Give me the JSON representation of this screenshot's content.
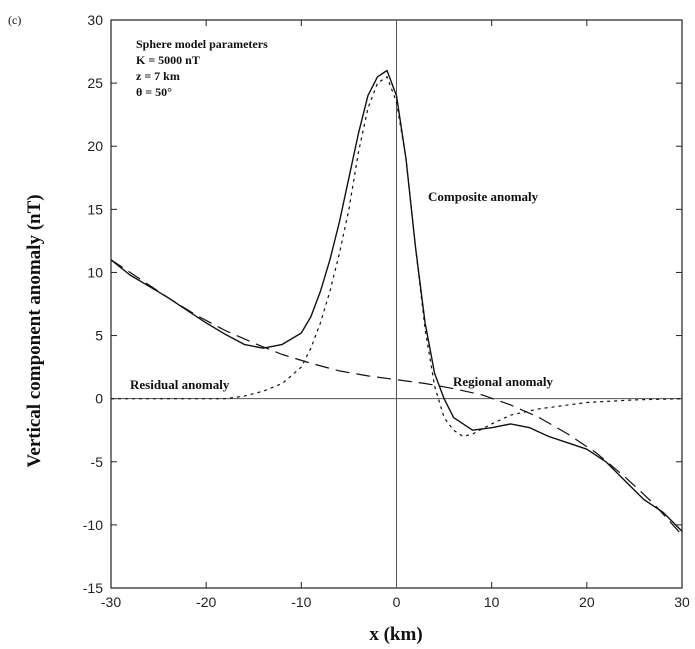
{
  "panel_label": "(c)",
  "chart_data": {
    "type": "line",
    "xlabel": "x (km)",
    "ylabel": "Vertical component anomaly (nT)",
    "xlim": [
      -30,
      30
    ],
    "ylim": [
      -15,
      30
    ],
    "x_ticks": [
      -30,
      -20,
      -10,
      0,
      10,
      20,
      30
    ],
    "y_ticks": [
      -15,
      -10,
      -5,
      0,
      5,
      10,
      15,
      20,
      25,
      30
    ],
    "x_tick_labels": [
      "-30",
      "-20",
      "-10",
      "0",
      "10",
      "20",
      "30"
    ],
    "y_tick_labels": [
      "-15",
      "-10",
      "-5",
      "0",
      "5",
      "10",
      "15",
      "20",
      "25",
      "30"
    ],
    "grid": false,
    "reference_lines": {
      "x": 0,
      "y": 0
    },
    "parameters": {
      "heading": "Sphere model parameters",
      "lines": [
        "K = 5000 nT",
        "z = 7 km",
        "θ = 50°"
      ]
    },
    "annotations": [
      "Composite anomaly",
      "Residual anomaly",
      "Regional anomaly"
    ],
    "series": [
      {
        "style": "solid",
        "x": [
          -30,
          -28,
          -26,
          -24,
          -22,
          -20,
          -18,
          -16,
          -14,
          -12,
          -10,
          -9,
          -8,
          -7,
          -6,
          -5,
          -4,
          -3,
          -2,
          -1,
          0,
          1,
          2,
          3,
          4,
          5,
          6,
          8,
          10,
          12,
          14,
          16,
          18,
          20,
          22,
          24,
          26,
          28,
          30
        ],
        "y": [
          11.0,
          9.8,
          8.9,
          8.0,
          7.0,
          6.0,
          5.1,
          4.3,
          4.0,
          4.3,
          5.2,
          6.5,
          8.5,
          11.0,
          14.0,
          17.5,
          21.0,
          24.0,
          25.5,
          26.0,
          24.0,
          19.0,
          12.0,
          6.0,
          2.0,
          0.0,
          -1.5,
          -2.5,
          -2.3,
          -2.0,
          -2.3,
          -3.0,
          -3.5,
          -4.0,
          -5.0,
          -6.5,
          -8.0,
          -9.0,
          -10.5
        ]
      },
      {
        "style": "dotted",
        "x": [
          -30,
          -25,
          -20,
          -18,
          -16,
          -14,
          -12,
          -10,
          -9,
          -8,
          -7,
          -6,
          -5,
          -4,
          -3,
          -2,
          -1,
          0,
          1,
          2,
          3,
          4,
          5,
          6,
          7,
          8,
          10,
          12,
          15,
          20,
          25,
          30
        ],
        "y": [
          0.0,
          0.0,
          0.0,
          0.0,
          0.2,
          0.6,
          1.2,
          2.5,
          4.0,
          6.0,
          8.5,
          11.5,
          15.0,
          19.5,
          23.0,
          25.0,
          25.5,
          23.5,
          19.0,
          12.0,
          5.5,
          1.0,
          -1.5,
          -2.5,
          -3.0,
          -2.8,
          -2.0,
          -1.3,
          -0.8,
          -0.3,
          -0.1,
          0.0
        ]
      },
      {
        "style": "dashed",
        "x": [
          -30,
          -27,
          -24,
          -21,
          -18,
          -15,
          -12,
          -9,
          -6,
          -3,
          0,
          3,
          6,
          9,
          12,
          15,
          18,
          21,
          24,
          27,
          30
        ],
        "y": [
          11.0,
          9.5,
          8.0,
          6.6,
          5.4,
          4.4,
          3.5,
          2.8,
          2.2,
          1.8,
          1.5,
          1.2,
          0.8,
          0.3,
          -0.5,
          -1.5,
          -2.8,
          -4.3,
          -6.2,
          -8.3,
          -10.8
        ]
      }
    ]
  }
}
